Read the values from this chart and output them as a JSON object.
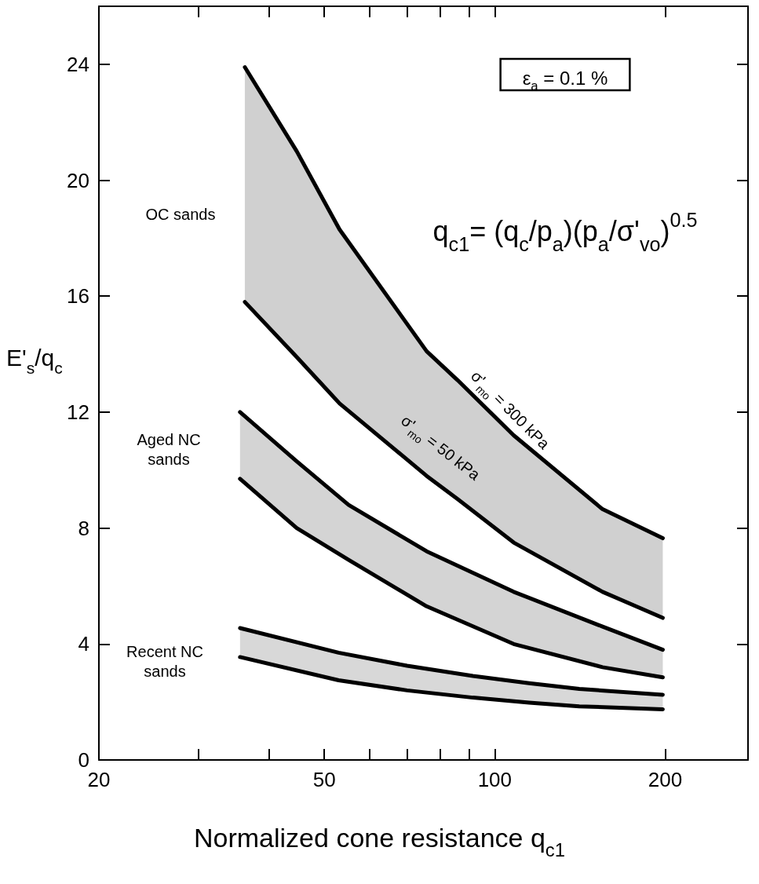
{
  "chart_data": {
    "type": "line",
    "xlabel": "Normalized cone resistance q$_{c1}$",
    "ylabel": "E'$_{s}$/q$_{c}$",
    "log": "x",
    "grid": false,
    "legend": false,
    "marker": "none",
    "line_style": "solid",
    "xlim": [
      20,
      280
    ],
    "xticks": [
      20,
      {
        "value": 30,
        "label": null
      },
      {
        "value": 40,
        "label": null
      },
      50,
      {
        "value": 60,
        "label": null
      },
      {
        "value": 70,
        "label": null
      },
      {
        "value": 80,
        "label": null
      },
      {
        "value": 90,
        "label": null
      },
      100,
      200
    ],
    "ylim": [
      0,
      26
    ],
    "yticks": [
      0,
      4,
      8,
      12,
      16,
      20,
      24
    ],
    "series": [
      {
        "color": "#000000",
        "x": [
          36.2,
          44.7,
          53.2,
          75.8,
          86,
          108,
          155,
          198
        ],
        "values": [
          23.9,
          21.0,
          18.3,
          14.1,
          13.1,
          11.2,
          8.65,
          7.65
        ],
        "lower": [
          15.8,
          13.9,
          12.3,
          9.8,
          9.0,
          7.5,
          5.8,
          4.9
        ],
        "upper": [
          23.9,
          21.0,
          18.3,
          14.1,
          13.1,
          11.2,
          8.65,
          7.65
        ]
      },
      {
        "color": "#000000",
        "x": [
          36.2,
          44.7,
          53.2,
          75.8,
          86,
          108,
          155,
          198
        ],
        "values": [
          15.8,
          13.9,
          12.3,
          9.8,
          9.0,
          7.5,
          5.8,
          4.9
        ]
      },
      {
        "color": "#000000",
        "x": [
          35.5,
          44.7,
          55.2,
          75.8,
          108,
          155,
          198
        ],
        "values": [
          12.0,
          10.3,
          8.8,
          7.2,
          5.8,
          4.6,
          3.8
        ],
        "lower": [
          9.7,
          8.0,
          6.9,
          5.3,
          4.0,
          3.2,
          2.85
        ],
        "upper": [
          12.0,
          10.3,
          8.8,
          7.2,
          5.8,
          4.6,
          3.8
        ]
      },
      {
        "color": "#000000",
        "x": [
          35.5,
          44.7,
          55.2,
          75.8,
          108,
          155,
          198
        ],
        "values": [
          9.7,
          8.0,
          6.9,
          5.3,
          4.0,
          3.2,
          2.85
        ]
      },
      {
        "color": "#000000",
        "x": [
          35.5,
          53,
          70,
          91.5,
          115,
          141,
          198
        ],
        "values": [
          4.55,
          3.7,
          3.25,
          2.9,
          2.65,
          2.45,
          2.25
        ],
        "lower": [
          3.55,
          2.75,
          2.4,
          2.15,
          1.98,
          1.85,
          1.75
        ],
        "upper": [
          4.55,
          3.7,
          3.25,
          2.9,
          2.65,
          2.45,
          2.25
        ]
      },
      {
        "color": "#000000",
        "x": [
          35.5,
          53,
          70,
          91.5,
          115,
          141,
          198
        ],
        "values": [
          3.55,
          2.75,
          2.4,
          2.15,
          1.98,
          1.85,
          1.75
        ]
      }
    ],
    "annotations": [
      "ε$_{a}$ = 0.1 %",
      "q$_{c1}$= (q$_{c}$/p$_{a}$)(p$_{a}$/σ'$_{vo}$)$^{0.5}$",
      "OC sands",
      "Aged NC\nsands",
      "Recent NC\nsands",
      "σ'$_{mo}$ = 300 kPa",
      "σ'$_{mo}$ = 50 kPa"
    ]
  }
}
